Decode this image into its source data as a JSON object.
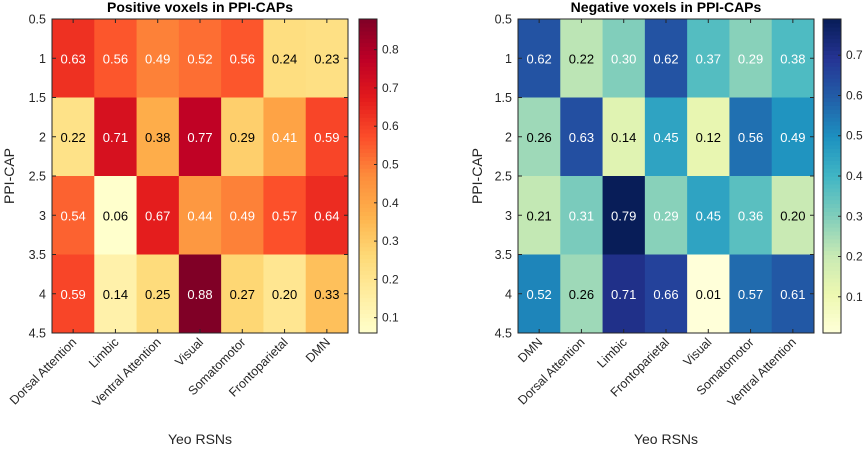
{
  "chart_data": [
    {
      "type": "heatmap",
      "title": "Positive voxels in PPI-CAPs",
      "xlabel": "Yeo RSNs",
      "ylabel": "PPI-CAP",
      "x_categories": [
        "Dorsal Attention",
        "Limbic",
        "Ventral Attention",
        "Visual",
        "Somatomotor",
        "Frontoparietal",
        "DMN"
      ],
      "y_categories": [
        "1",
        "2",
        "3",
        "4"
      ],
      "y_ticks": [
        "0.5",
        "1",
        "1.5",
        "2",
        "2.5",
        "3",
        "3.5",
        "4",
        "4.5"
      ],
      "values": [
        [
          0.63,
          0.56,
          0.49,
          0.52,
          0.56,
          0.24,
          0.23
        ],
        [
          0.22,
          0.71,
          0.38,
          0.77,
          0.29,
          0.41,
          0.59
        ],
        [
          0.54,
          0.06,
          0.67,
          0.44,
          0.49,
          0.57,
          0.64
        ],
        [
          0.59,
          0.14,
          0.25,
          0.88,
          0.27,
          0.2,
          0.33
        ]
      ],
      "value_labels": [
        [
          "0.63",
          "0.56",
          "0.49",
          "0.52",
          "0.56",
          "0.24",
          "0.23"
        ],
        [
          "0.22",
          "0.71",
          "0.38",
          "0.77",
          "0.29",
          "0.41",
          "0.59"
        ],
        [
          "0.54",
          "0.06",
          "0.67",
          "0.44",
          "0.49",
          "0.57",
          "0.64"
        ],
        [
          "0.59",
          "0.14",
          "0.25",
          "0.88",
          "0.27",
          "0.20",
          "0.33"
        ]
      ],
      "colormap": "YlOrRd",
      "color_range": [
        0.06,
        0.88
      ],
      "colorbar_ticks": [
        "0.1",
        "0.2",
        "0.3",
        "0.4",
        "0.5",
        "0.6",
        "0.7",
        "0.8"
      ],
      "colorbar_tick_values": [
        0.1,
        0.2,
        0.3,
        0.4,
        0.5,
        0.6,
        0.7,
        0.8
      ]
    },
    {
      "type": "heatmap",
      "title": "Negative voxels in PPI-CAPs",
      "xlabel": "Yeo RSNs",
      "ylabel": "PPI-CAP",
      "x_categories": [
        "DMN",
        "Dorsal Attention",
        "Limbic",
        "Frontoparietal",
        "Visual",
        "Somatomotor",
        "Ventral Attention"
      ],
      "y_categories": [
        "1",
        "2",
        "3",
        "4"
      ],
      "y_ticks": [
        "0.5",
        "1",
        "1.5",
        "2",
        "2.5",
        "3",
        "3.5",
        "4",
        "4.5"
      ],
      "values": [
        [
          0.62,
          0.22,
          0.3,
          0.62,
          0.37,
          0.29,
          0.38
        ],
        [
          0.26,
          0.63,
          0.14,
          0.45,
          0.12,
          0.56,
          0.49
        ],
        [
          0.21,
          0.31,
          0.79,
          0.29,
          0.45,
          0.36,
          0.2
        ],
        [
          0.52,
          0.26,
          0.71,
          0.66,
          0.01,
          0.57,
          0.61
        ]
      ],
      "value_labels": [
        [
          "0.62",
          "0.22",
          "0.30",
          "0.62",
          "0.37",
          "0.29",
          "0.38"
        ],
        [
          "0.26",
          "0.63",
          "0.14",
          "0.45",
          "0.12",
          "0.56",
          "0.49"
        ],
        [
          "0.21",
          "0.31",
          "0.79",
          "0.29",
          "0.45",
          "0.36",
          "0.20"
        ],
        [
          "0.52",
          "0.26",
          "0.71",
          "0.66",
          "0.01",
          "0.57",
          "0.61"
        ]
      ],
      "colormap": "YlGnBu",
      "color_range": [
        0.01,
        0.79
      ],
      "colorbar_ticks": [
        "0.1",
        "0.2",
        "0.3",
        "0.4",
        "0.5",
        "0.6",
        "0.7"
      ],
      "colorbar_tick_values": [
        0.1,
        0.2,
        0.3,
        0.4,
        0.5,
        0.6,
        0.7
      ]
    }
  ]
}
